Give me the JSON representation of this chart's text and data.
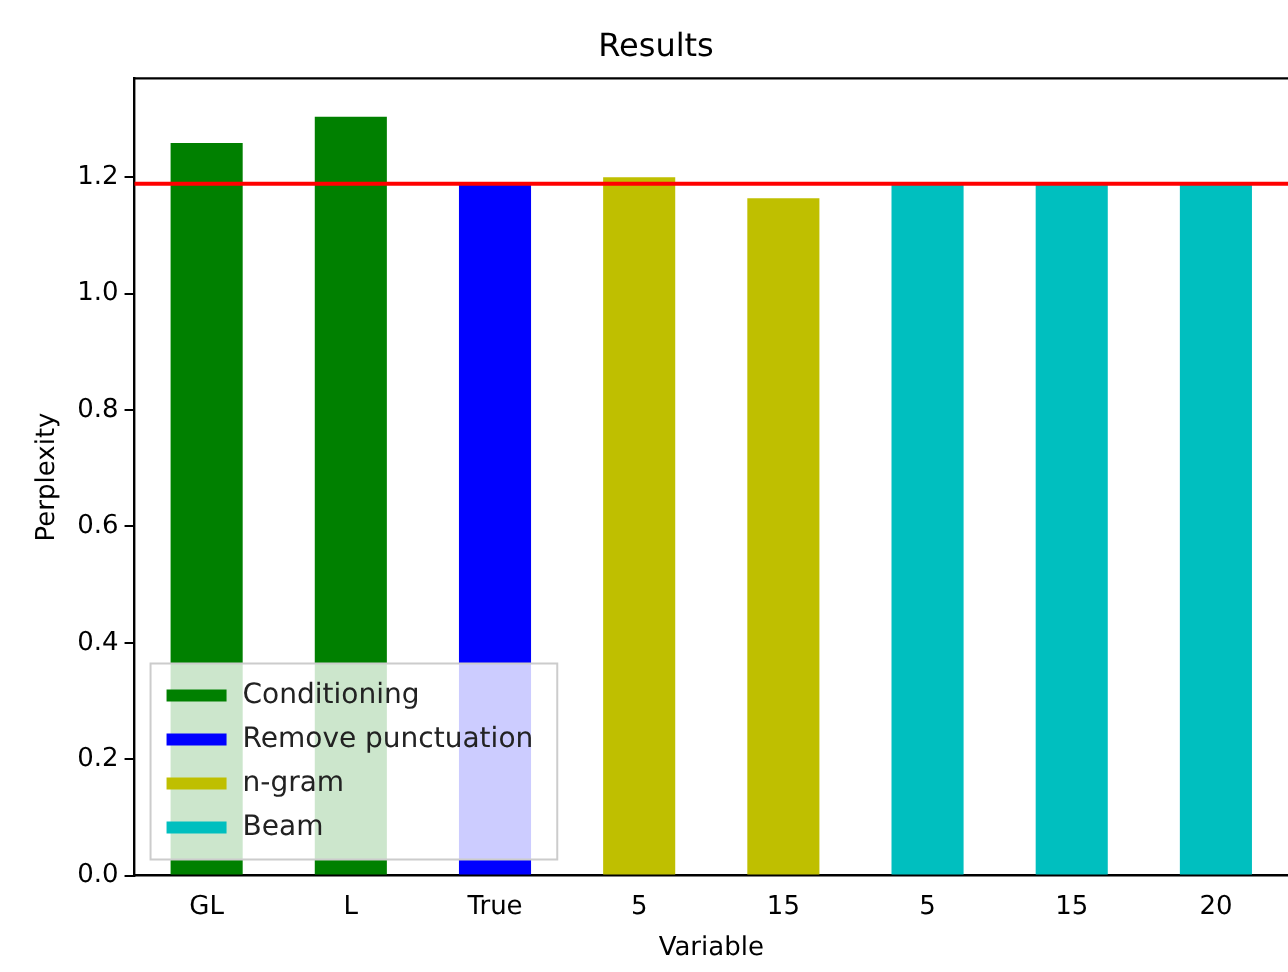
{
  "chart_data": {
    "type": "bar",
    "title": "Results",
    "xlabel": "Variable",
    "ylabel": "Perplexity",
    "categories": [
      "GL",
      "L",
      "True",
      "5",
      "15",
      "5",
      "15",
      "20"
    ],
    "series": [
      {
        "name": "Conditioning",
        "color": "#008000",
        "values": [
          1.259,
          1.304,
          null,
          null,
          null,
          null,
          null,
          null
        ]
      },
      {
        "name": "Remove punctuation",
        "color": "#0000ff",
        "values": [
          null,
          null,
          1.189,
          null,
          null,
          null,
          null,
          null
        ]
      },
      {
        "name": "n-gram",
        "color": "#bfbf00",
        "values": [
          null,
          null,
          null,
          1.2,
          1.164,
          null,
          null,
          null
        ]
      },
      {
        "name": "Beam",
        "color": "#00bfbf",
        "values": [
          null,
          null,
          null,
          null,
          null,
          1.189,
          1.189,
          1.189
        ]
      }
    ],
    "ylim": [
      0,
      1.37
    ],
    "yticks": [
      {
        "value": 0,
        "label": "0.0"
      },
      0.2,
      0.4,
      0.6,
      0.8,
      {
        "value": 1,
        "label": "1.0"
      },
      1.2
    ],
    "ref_lines": [
      {
        "axis": "y",
        "value": 1.189,
        "color": "#ff0000"
      }
    ],
    "grid": false,
    "legend": "bottom left"
  }
}
